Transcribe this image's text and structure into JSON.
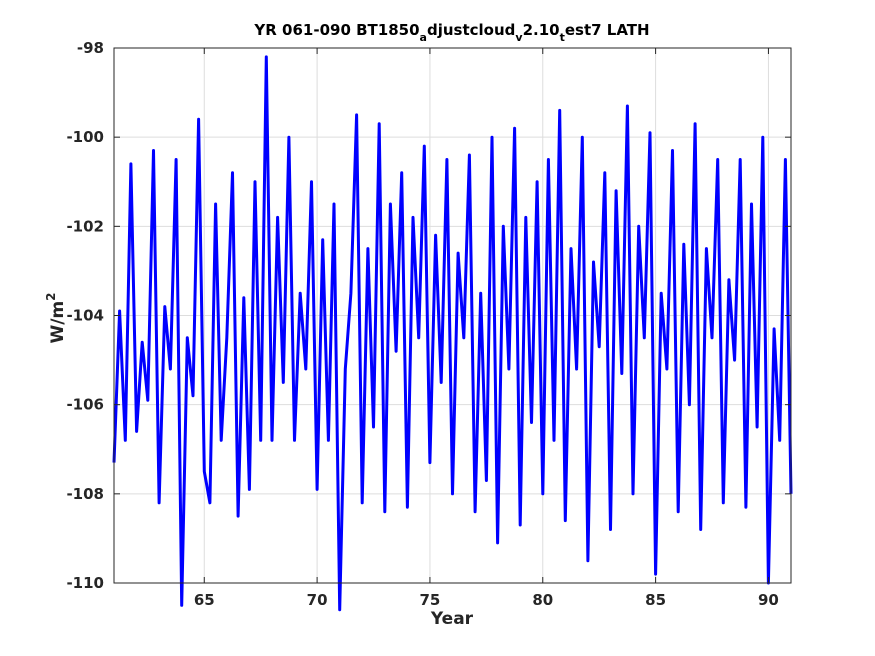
{
  "chart_data": {
    "type": "line",
    "title_parts": [
      "YR 061-090 BT1850",
      "a",
      "djustcloud",
      "v",
      "2.10",
      "t",
      "est7 LATH"
    ],
    "xlabel": "Year",
    "ylabel": "W/m",
    "ylabel_superscript": "2",
    "xlim": [
      61,
      91
    ],
    "ylim": [
      -110,
      -98
    ],
    "xticks": [
      65,
      70,
      75,
      80,
      85,
      90
    ],
    "yticks": [
      -98,
      -100,
      -102,
      -104,
      -106,
      -108,
      -110
    ],
    "grid": true,
    "line_color": "#0000ff",
    "series": [
      {
        "x": [
          61.0,
          61.25,
          61.5,
          61.75,
          62.0,
          62.25,
          62.5,
          62.75,
          63.0,
          63.25,
          63.5,
          63.75,
          64.0,
          64.25,
          64.5,
          64.75,
          65.0,
          65.25,
          65.5,
          65.75,
          66.0,
          66.25,
          66.5,
          66.75,
          67.0,
          67.25,
          67.5,
          67.75,
          68.0,
          68.25,
          68.5,
          68.75,
          69.0,
          69.25,
          69.5,
          69.75,
          70.0,
          70.25,
          70.5,
          70.75,
          71.0,
          71.25,
          71.5,
          71.75,
          72.0,
          72.25,
          72.5,
          72.75,
          73.0,
          73.25,
          73.5,
          73.75,
          74.0,
          74.25,
          74.5,
          74.75,
          75.0,
          75.25,
          75.5,
          75.75,
          76.0,
          76.25,
          76.5,
          76.75,
          77.0,
          77.25,
          77.5,
          77.75,
          78.0,
          78.25,
          78.5,
          78.75,
          79.0,
          79.25,
          79.5,
          79.75,
          80.0,
          80.25,
          80.5,
          80.75,
          81.0,
          81.25,
          81.5,
          81.75,
          82.0,
          82.25,
          82.5,
          82.75,
          83.0,
          83.25,
          83.5,
          83.75,
          84.0,
          84.25,
          84.5,
          84.75,
          85.0,
          85.25,
          85.5,
          85.75,
          86.0,
          86.25,
          86.5,
          86.75,
          87.0,
          87.25,
          87.5,
          87.75,
          88.0,
          88.25,
          88.5,
          88.75,
          89.0,
          89.25,
          89.5,
          89.75,
          90.0,
          90.25,
          90.5,
          90.75,
          91.0
        ],
        "values": [
          -107.3,
          -103.9,
          -106.8,
          -100.6,
          -106.6,
          -104.6,
          -105.9,
          -100.3,
          -108.2,
          -103.8,
          -105.2,
          -100.5,
          -110.5,
          -104.5,
          -105.8,
          -99.6,
          -107.5,
          -108.2,
          -101.5,
          -106.8,
          -104.5,
          -100.8,
          -108.5,
          -103.6,
          -107.9,
          -101.0,
          -106.8,
          -98.2,
          -106.8,
          -101.8,
          -105.5,
          -100.0,
          -106.8,
          -103.5,
          -105.2,
          -101.0,
          -107.9,
          -102.3,
          -106.8,
          -101.5,
          -110.6,
          -105.2,
          -103.5,
          -99.5,
          -108.2,
          -102.5,
          -106.5,
          -99.7,
          -108.4,
          -101.5,
          -104.8,
          -100.8,
          -108.3,
          -101.8,
          -104.5,
          -100.2,
          -107.3,
          -102.2,
          -105.5,
          -100.5,
          -108.0,
          -102.6,
          -104.5,
          -100.4,
          -108.4,
          -103.5,
          -107.7,
          -100.0,
          -109.1,
          -102.0,
          -105.2,
          -99.8,
          -108.7,
          -101.8,
          -106.4,
          -101.0,
          -108.0,
          -100.5,
          -106.8,
          -99.4,
          -108.6,
          -102.5,
          -105.2,
          -100.0,
          -109.5,
          -102.8,
          -104.7,
          -100.8,
          -108.8,
          -101.2,
          -105.3,
          -99.3,
          -108.0,
          -102.0,
          -104.5,
          -99.9,
          -109.8,
          -103.5,
          -105.2,
          -100.3,
          -108.4,
          -102.4,
          -106.0,
          -99.7,
          -108.8,
          -102.5,
          -104.5,
          -100.5,
          -108.2,
          -103.2,
          -105.0,
          -100.5,
          -108.3,
          -101.5,
          -106.5,
          -100.0,
          -110.0,
          -104.3,
          -106.8,
          -100.5,
          -108.0
        ]
      }
    ]
  }
}
